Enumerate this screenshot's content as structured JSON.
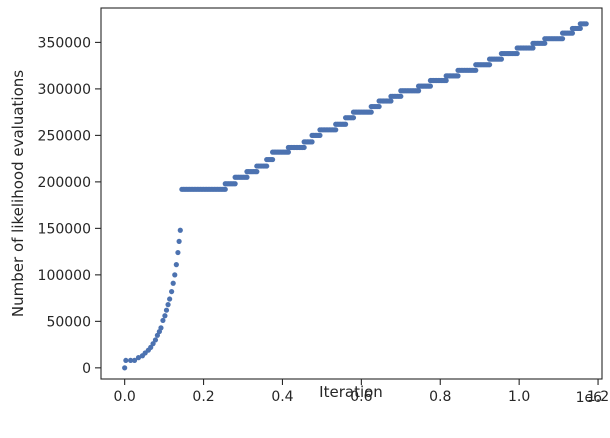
{
  "chart_data": {
    "type": "scatter",
    "title": "",
    "xlabel": "Iteration",
    "ylabel": "Number of likelihood evaluations",
    "x_offset_text": "1e6",
    "xlim": [
      -0.06,
      1.21
    ],
    "ylim": [
      -12000,
      387000
    ],
    "x_ticks": [
      0.0,
      0.2,
      0.4,
      0.6,
      0.8,
      1.0,
      1.2
    ],
    "x_tick_labels": [
      "0.0",
      "0.2",
      "0.4",
      "0.6",
      "0.8",
      "1.0",
      "1.2"
    ],
    "y_ticks": [
      0,
      50000,
      100000,
      150000,
      200000,
      250000,
      300000,
      350000
    ],
    "y_tick_labels": [
      "0",
      "50000",
      "100000",
      "150000",
      "200000",
      "250000",
      "300000",
      "350000"
    ],
    "grid": false,
    "marker_color": "#4c72b0",
    "x_units": "1e6 iterations",
    "curve_points": [
      [
        0.0,
        0
      ],
      [
        0.003,
        8000
      ],
      [
        0.015,
        8000
      ],
      [
        0.025,
        8000
      ],
      [
        0.035,
        11000
      ],
      [
        0.045,
        13000
      ],
      [
        0.052,
        16000
      ],
      [
        0.06,
        19000
      ],
      [
        0.066,
        22000
      ],
      [
        0.072,
        26000
      ],
      [
        0.078,
        30000
      ],
      [
        0.083,
        35000
      ],
      [
        0.088,
        39000
      ],
      [
        0.092,
        43000
      ],
      [
        0.097,
        51000
      ],
      [
        0.102,
        56000
      ],
      [
        0.106,
        62000
      ],
      [
        0.11,
        68000
      ],
      [
        0.114,
        74000
      ],
      [
        0.119,
        82000
      ],
      [
        0.123,
        91000
      ],
      [
        0.127,
        100000
      ],
      [
        0.131,
        111000
      ],
      [
        0.135,
        124000
      ],
      [
        0.138,
        136000
      ],
      [
        0.141,
        148000
      ]
    ],
    "step_segments": [
      {
        "y": 192000,
        "x_start": 0.145,
        "x_end": 0.255
      },
      {
        "y": 198000,
        "x_start": 0.255,
        "x_end": 0.28
      },
      {
        "y": 205000,
        "x_start": 0.28,
        "x_end": 0.31
      },
      {
        "y": 211000,
        "x_start": 0.31,
        "x_end": 0.335
      },
      {
        "y": 217000,
        "x_start": 0.335,
        "x_end": 0.36
      },
      {
        "y": 224000,
        "x_start": 0.36,
        "x_end": 0.375
      },
      {
        "y": 232000,
        "x_start": 0.375,
        "x_end": 0.415
      },
      {
        "y": 237000,
        "x_start": 0.415,
        "x_end": 0.455
      },
      {
        "y": 243000,
        "x_start": 0.455,
        "x_end": 0.475
      },
      {
        "y": 250000,
        "x_start": 0.475,
        "x_end": 0.495
      },
      {
        "y": 256000,
        "x_start": 0.495,
        "x_end": 0.535
      },
      {
        "y": 262000,
        "x_start": 0.535,
        "x_end": 0.56
      },
      {
        "y": 269000,
        "x_start": 0.56,
        "x_end": 0.58
      },
      {
        "y": 275000,
        "x_start": 0.58,
        "x_end": 0.625
      },
      {
        "y": 281000,
        "x_start": 0.625,
        "x_end": 0.645
      },
      {
        "y": 287000,
        "x_start": 0.645,
        "x_end": 0.675
      },
      {
        "y": 292000,
        "x_start": 0.675,
        "x_end": 0.7
      },
      {
        "y": 298000,
        "x_start": 0.7,
        "x_end": 0.745
      },
      {
        "y": 303000,
        "x_start": 0.745,
        "x_end": 0.775
      },
      {
        "y": 309000,
        "x_start": 0.775,
        "x_end": 0.815
      },
      {
        "y": 314000,
        "x_start": 0.815,
        "x_end": 0.845
      },
      {
        "y": 320000,
        "x_start": 0.845,
        "x_end": 0.89
      },
      {
        "y": 326000,
        "x_start": 0.89,
        "x_end": 0.925
      },
      {
        "y": 332000,
        "x_start": 0.925,
        "x_end": 0.955
      },
      {
        "y": 338000,
        "x_start": 0.955,
        "x_end": 0.995
      },
      {
        "y": 344000,
        "x_start": 0.995,
        "x_end": 1.035
      },
      {
        "y": 349000,
        "x_start": 1.035,
        "x_end": 1.065
      },
      {
        "y": 354000,
        "x_start": 1.065,
        "x_end": 1.11
      },
      {
        "y": 360000,
        "x_start": 1.11,
        "x_end": 1.135
      },
      {
        "y": 365000,
        "x_start": 1.135,
        "x_end": 1.155
      },
      {
        "y": 370000,
        "x_start": 1.155,
        "x_end": 1.17
      }
    ]
  }
}
